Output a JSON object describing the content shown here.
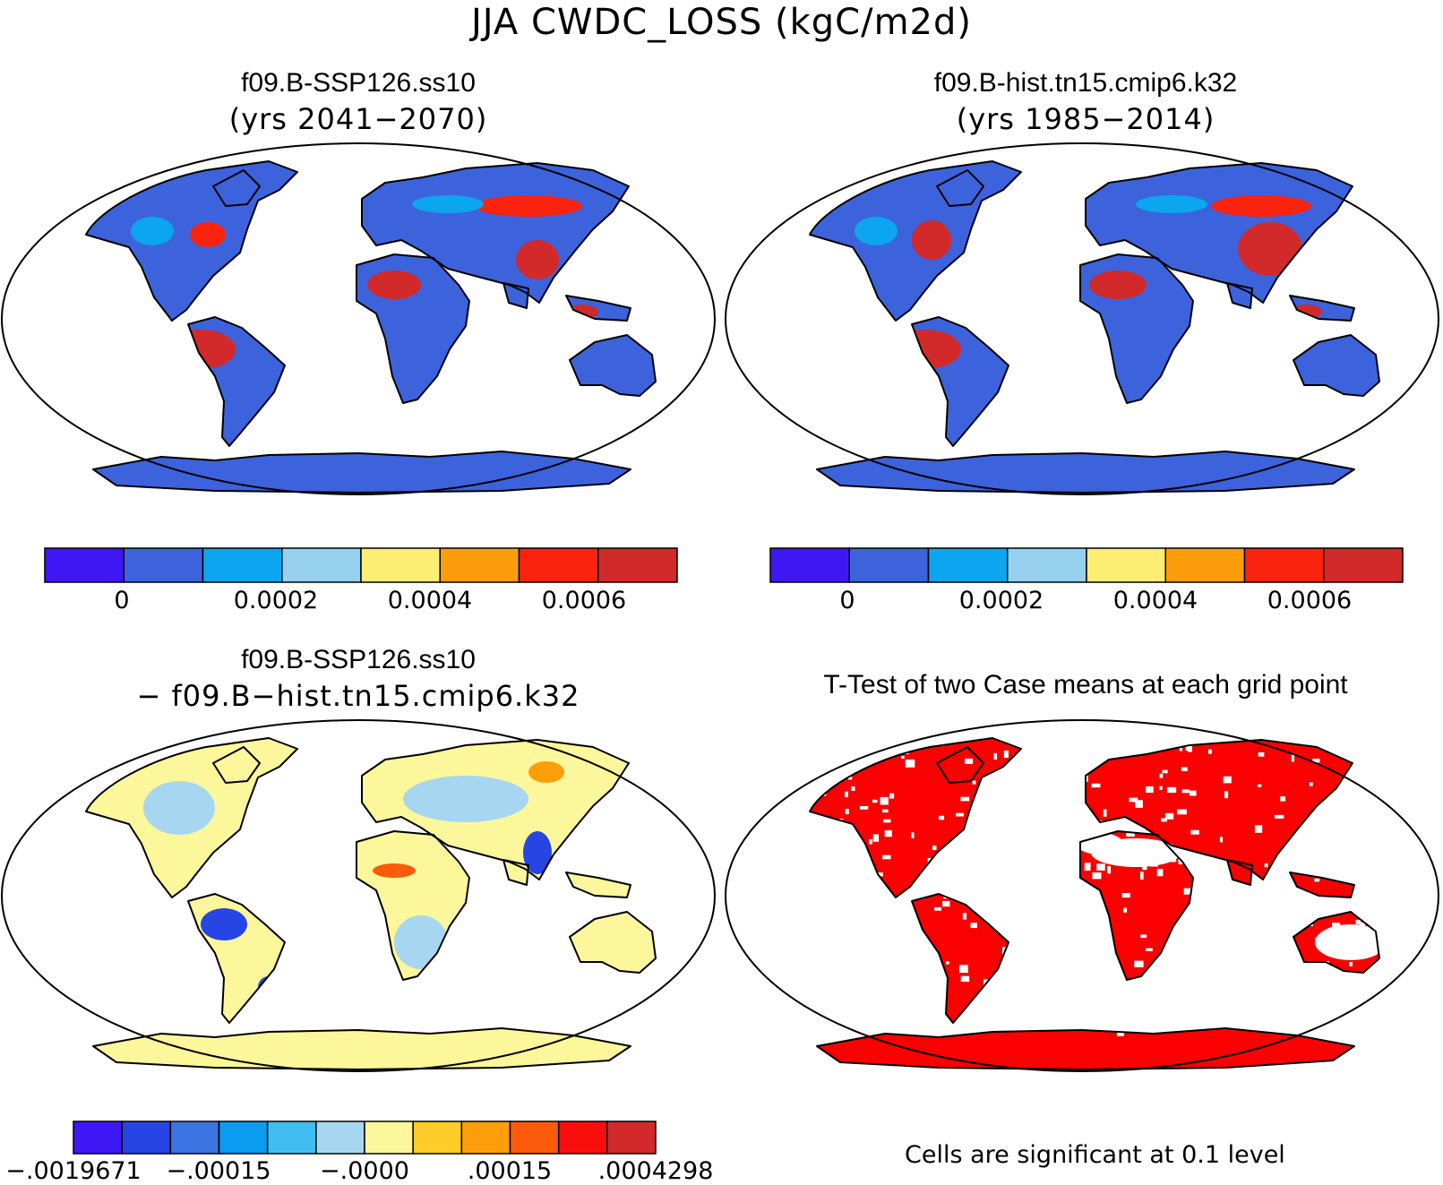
{
  "title": "JJA CWDC_LOSS (kgC/m2d)",
  "panels": {
    "tl": {
      "title": "f09.B-SSP126.ss10",
      "subtitle": "(yrs 2041−2070)"
    },
    "tr": {
      "title": "f09.B-hist.tn15.cmip6.k32",
      "subtitle": "(yrs 1985−2014)"
    },
    "bl": {
      "title": "f09.B-SSP126.ss10",
      "subtitle": "− f09.B−hist.tn15.cmip6.k32"
    },
    "br": {
      "title": "T-Test of two Case means at each grid point"
    }
  },
  "colors": {
    "abs_scale": [
      "#3d17f4",
      "#3c63dc",
      "#0ba5f0",
      "#96d0ee",
      "#fced73",
      "#fe9d0c",
      "#fa230e",
      "#d2292b"
    ],
    "diff_scale": [
      "#3d17f4",
      "#2745e4",
      "#3c74e2",
      "#0b9bef",
      "#40bdf0",
      "#a7d6f0",
      "#fdf79c",
      "#fdcc28",
      "#fd9e0a",
      "#fc5b0c",
      "#f90e0c",
      "#d2292b"
    ],
    "ocean": "#ffffff",
    "coast": "#000000",
    "significant": "#fa0000"
  },
  "chart_data": [
    {
      "type": "heatmap",
      "panel": "top-left",
      "title": "f09.B-SSP126.ss10",
      "subtitle": "(yrs 2041−2070)",
      "variable": "JJA CWDC_LOSS (kgC/m2d)",
      "colorbar": {
        "ticks": [
          "0",
          "0.0002",
          "0.0004",
          "0.0006"
        ],
        "levels": [
          0,
          0.0001,
          0.0002,
          0.0003,
          0.0004,
          0.0005,
          0.0006
        ],
        "bins": 8
      }
    },
    {
      "type": "heatmap",
      "panel": "top-right",
      "title": "f09.B-hist.tn15.cmip6.k32",
      "subtitle": "(yrs 1985−2014)",
      "variable": "JJA CWDC_LOSS (kgC/m2d)",
      "colorbar": {
        "ticks": [
          "0",
          "0.0002",
          "0.0004",
          "0.0006"
        ],
        "levels": [
          0,
          0.0001,
          0.0002,
          0.0003,
          0.0004,
          0.0005,
          0.0006
        ],
        "bins": 8
      }
    },
    {
      "type": "heatmap",
      "panel": "bottom-left",
      "title": "f09.B-SSP126.ss10",
      "subtitle": "− f09.B−hist.tn15.cmip6.k32",
      "colorbar": {
        "ticks": [
          "−.0019671",
          "−.00015",
          "−.0000",
          ".00015",
          ".0004298"
        ],
        "range": [
          -0.0019671,
          0.0004298
        ],
        "bins": 12
      }
    },
    {
      "type": "heatmap",
      "panel": "bottom-right",
      "title": "T-Test of two Case means at each grid point",
      "note": "Cells are significant at 0.1 level",
      "significance_level": 0.1
    }
  ]
}
